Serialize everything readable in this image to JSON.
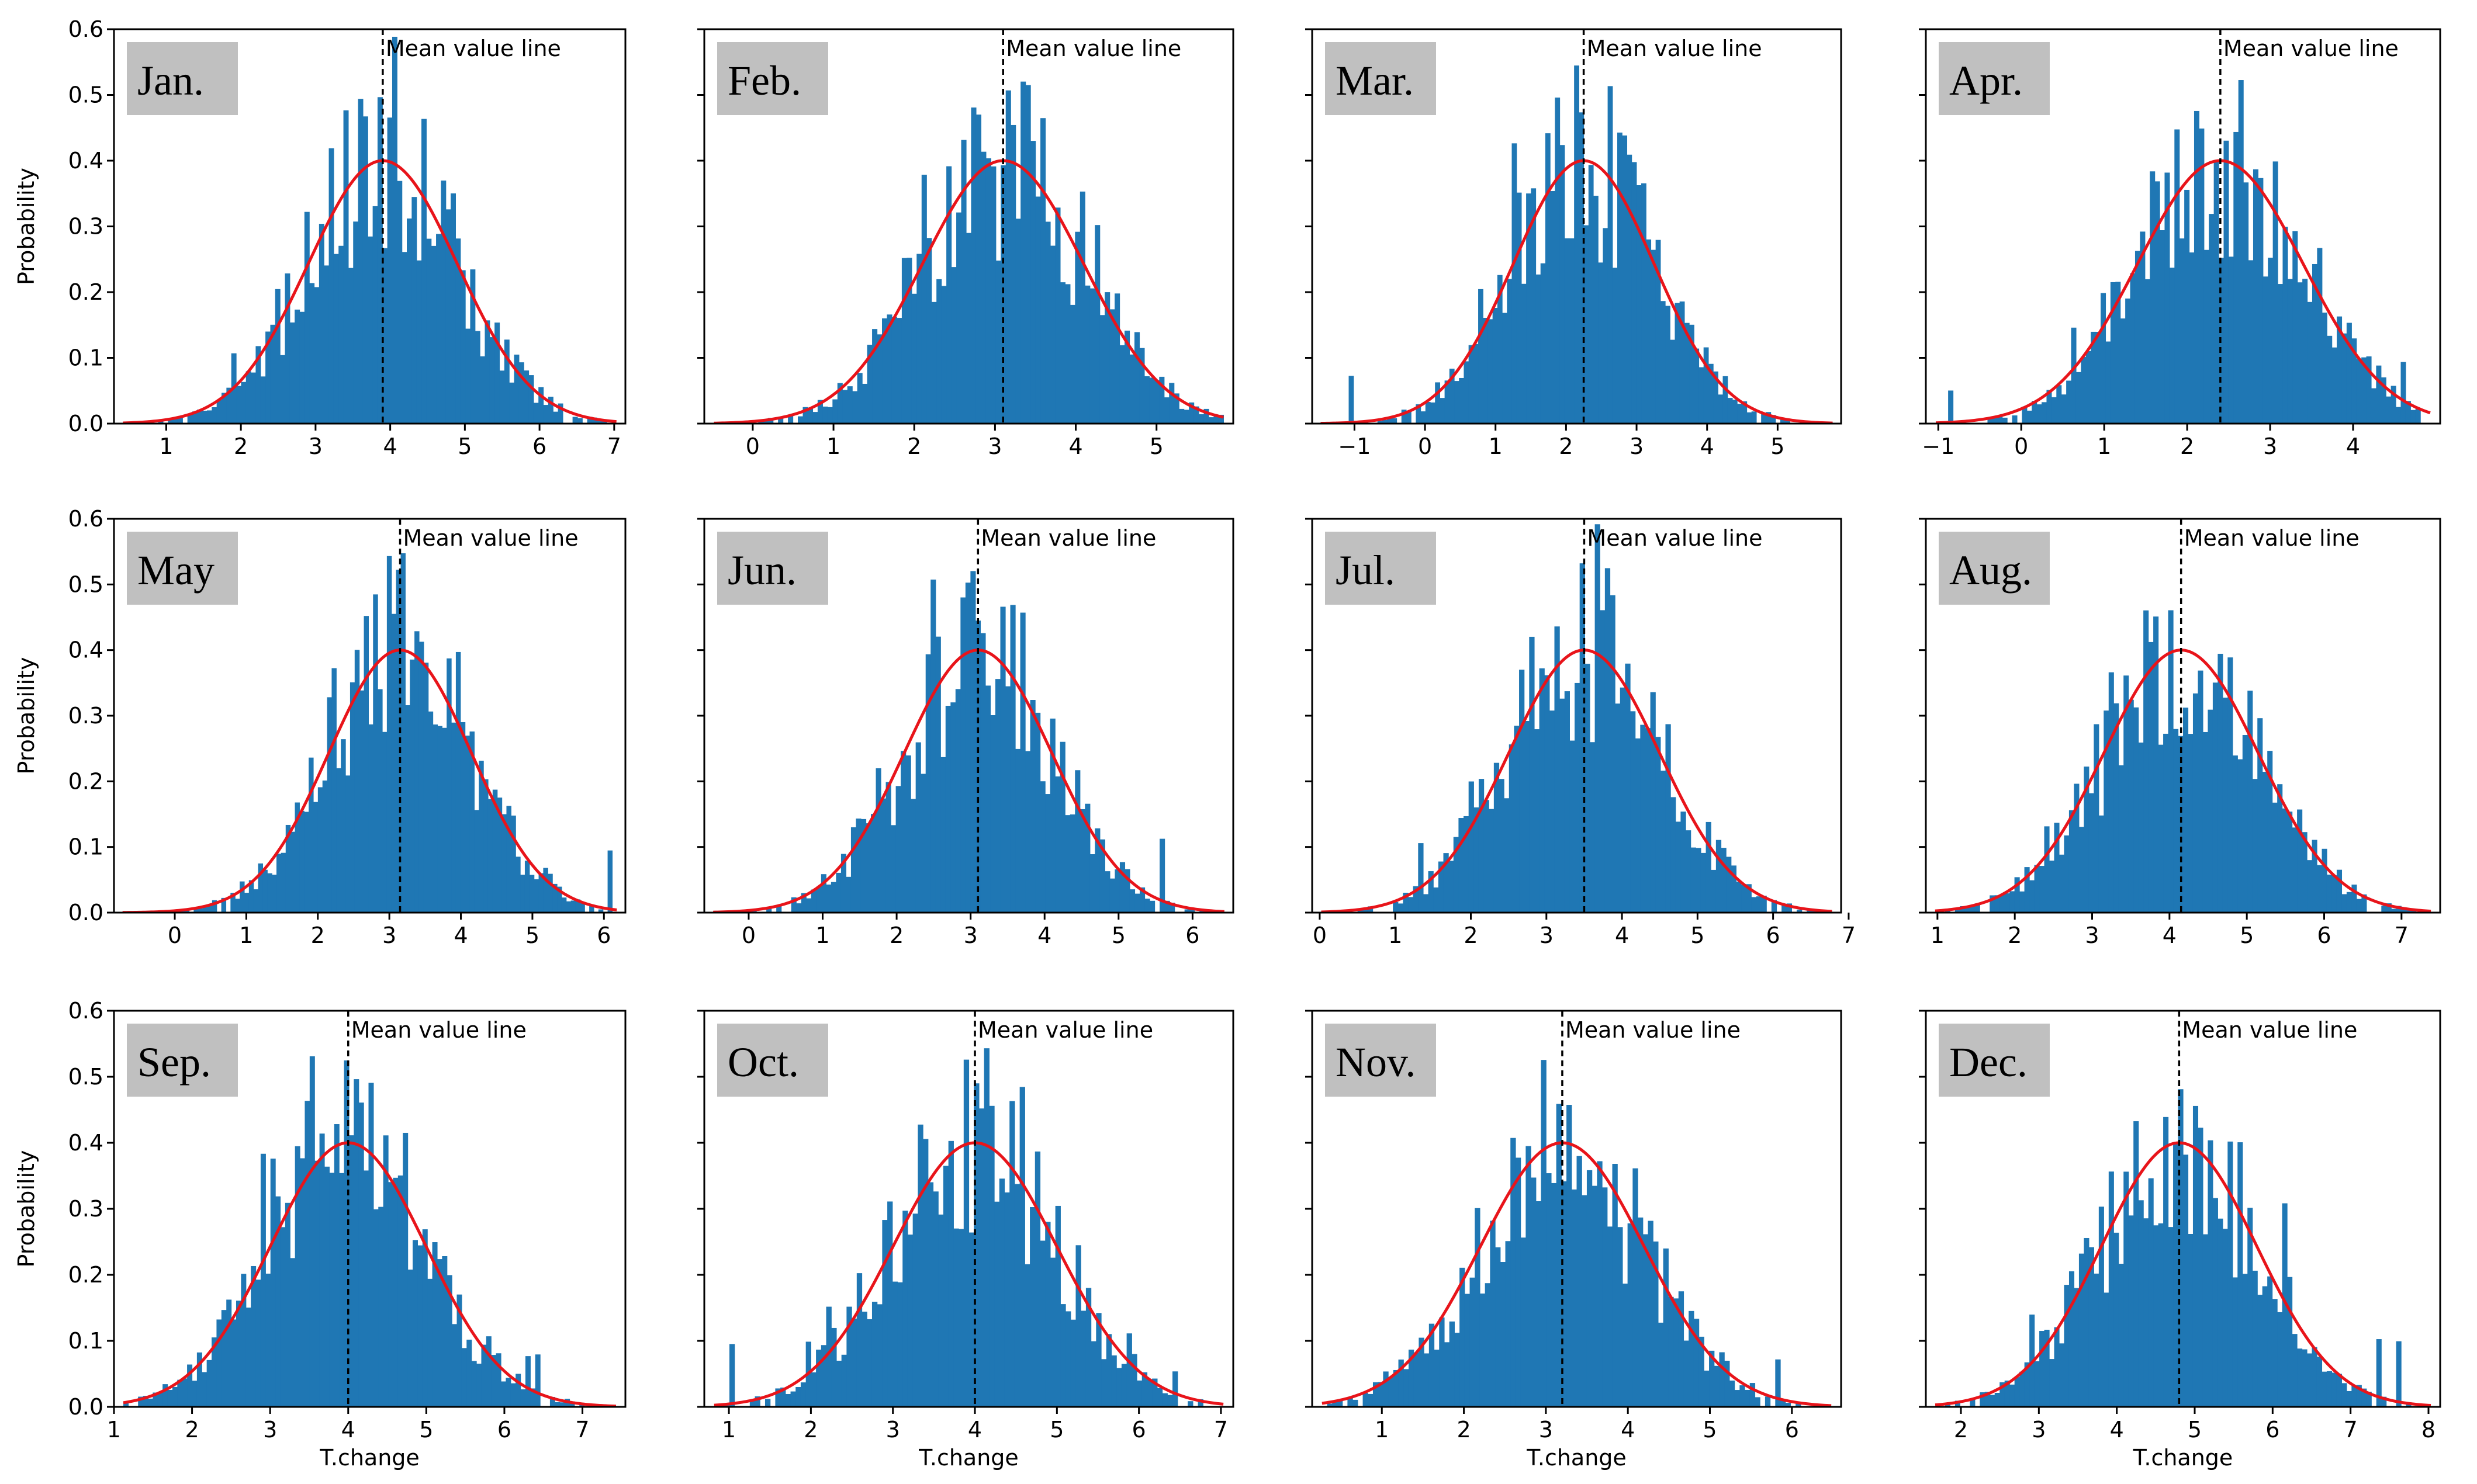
{
  "figure": {
    "ylabel": "Probability",
    "xlabel": "T.change",
    "mean_label": "Mean value line",
    "y_ticks": [
      "0.0",
      "0.1",
      "0.2",
      "0.3",
      "0.4",
      "0.5",
      "0.6"
    ],
    "ylim": [
      0,
      0.6
    ],
    "colors": {
      "bars": "#1f77b4",
      "fit": "#e8141a",
      "mean": "#000000",
      "label_bg": "#c0c0c0",
      "frame": "#000000"
    }
  },
  "chart_data": [
    {
      "type": "bar",
      "month": "Jan.",
      "mean": 3.9,
      "sd": 1.0,
      "xlim": [
        0.3,
        7.15
      ],
      "xticks": [
        1,
        2,
        3,
        4,
        5,
        6,
        7
      ],
      "xlabel": "",
      "ylabel": "Probability",
      "title": ""
    },
    {
      "type": "bar",
      "month": "Feb.",
      "mean": 3.1,
      "sd": 1.0,
      "xlim": [
        -0.6,
        5.95
      ],
      "xticks": [
        0,
        1,
        2,
        3,
        4,
        5
      ],
      "xlabel": "",
      "ylabel": "",
      "title": ""
    },
    {
      "type": "bar",
      "month": "Mar.",
      "mean": 2.25,
      "sd": 1.0,
      "xlim": [
        -1.6,
        5.9
      ],
      "xticks": [
        -1,
        0,
        1,
        2,
        3,
        4,
        5
      ],
      "xlabel": "",
      "ylabel": "",
      "title": ""
    },
    {
      "type": "bar",
      "month": "Apr.",
      "mean": 2.4,
      "sd": 1.0,
      "xlim": [
        -1.15,
        5.05
      ],
      "xticks": [
        -1,
        0,
        1,
        2,
        3,
        4
      ],
      "xlabel": "",
      "ylabel": "",
      "title": ""
    },
    {
      "type": "bar",
      "month": "May",
      "mean": 3.15,
      "sd": 1.0,
      "xlim": [
        -0.85,
        6.3
      ],
      "xticks": [
        0,
        1,
        2,
        3,
        4,
        5,
        6
      ],
      "xlabel": "",
      "ylabel": "Probability",
      "title": ""
    },
    {
      "type": "bar",
      "month": "Jun.",
      "mean": 3.1,
      "sd": 1.0,
      "xlim": [
        -0.6,
        6.55
      ],
      "xticks": [
        0,
        1,
        2,
        3,
        4,
        5,
        6
      ],
      "xlabel": "",
      "ylabel": "",
      "title": ""
    },
    {
      "type": "bar",
      "month": "Jul.",
      "mean": 3.5,
      "sd": 1.0,
      "xlim": [
        -0.1,
        6.9
      ],
      "xticks": [
        0,
        1,
        2,
        3,
        4,
        5,
        6,
        7
      ],
      "xlabel": "",
      "ylabel": "",
      "title": ""
    },
    {
      "type": "bar",
      "month": "Aug.",
      "mean": 4.15,
      "sd": 1.0,
      "xlim": [
        0.85,
        7.5
      ],
      "xticks": [
        1,
        2,
        3,
        4,
        5,
        6,
        7
      ],
      "xlabel": "",
      "ylabel": "",
      "title": ""
    },
    {
      "type": "bar",
      "month": "Sep.",
      "mean": 4.0,
      "sd": 1.0,
      "xlim": [
        1.0,
        7.55
      ],
      "xticks": [
        1,
        2,
        3,
        4,
        5,
        6,
        7
      ],
      "xlabel": "T.change",
      "ylabel": "Probability",
      "title": ""
    },
    {
      "type": "bar",
      "month": "Oct.",
      "mean": 4.0,
      "sd": 1.0,
      "xlim": [
        0.7,
        7.15
      ],
      "xticks": [
        1,
        2,
        3,
        4,
        5,
        6,
        7
      ],
      "xlabel": "T.change",
      "ylabel": "",
      "title": ""
    },
    {
      "type": "bar",
      "month": "Nov.",
      "mean": 3.2,
      "sd": 1.0,
      "xlim": [
        0.15,
        6.6
      ],
      "xticks": [
        1,
        2,
        3,
        4,
        5,
        6
      ],
      "xlabel": "T.change",
      "ylabel": "",
      "title": ""
    },
    {
      "type": "bar",
      "month": "Dec.",
      "mean": 4.8,
      "sd": 1.0,
      "xlim": [
        1.55,
        8.15
      ],
      "xticks": [
        2,
        3,
        4,
        5,
        6,
        7,
        8
      ],
      "xlabel": "T.change",
      "ylabel": "",
      "title": ""
    }
  ]
}
